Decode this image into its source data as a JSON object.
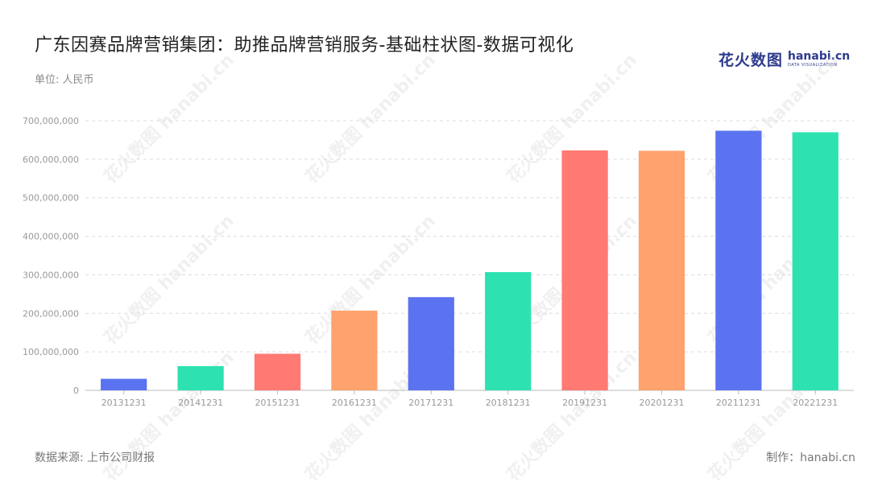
{
  "header": {
    "title": "广东因赛品牌营销集团：助推品牌营销服务-基础柱状图-数据可视化",
    "unit": "单位: 人民币"
  },
  "logo": {
    "cn": "花火数图",
    "en": "hanabi.cn",
    "sub": "DATA VISUALIZATION"
  },
  "footer": {
    "source": "数据来源: 上市公司财报",
    "credit": "制作：hanabi.cn"
  },
  "watermark": {
    "text": "花火数图 hanabi.cn"
  },
  "chart_data": {
    "type": "bar",
    "title": "广东因赛品牌营销集团：助推品牌营销服务-基础柱状图-数据可视化",
    "xlabel": "",
    "ylabel": "",
    "categories": [
      "20131231",
      "20141231",
      "20151231",
      "20161231",
      "20171231",
      "20181231",
      "20191231",
      "20201231",
      "20211231",
      "20221231"
    ],
    "values": [
      30000000,
      63000000,
      95000000,
      207000000,
      242000000,
      307000000,
      623000000,
      622000000,
      674000000,
      670000000
    ],
    "colors": [
      "#5b73f0",
      "#2de2b0",
      "#ff7a72",
      "#ffa26e",
      "#5b73f0",
      "#2de2b0",
      "#ff7a72",
      "#ffa26e",
      "#5b73f0",
      "#2de2b0"
    ],
    "ylim": [
      0,
      700000000
    ],
    "yticks": [
      0,
      100000000,
      200000000,
      300000000,
      400000000,
      500000000,
      600000000,
      700000000
    ],
    "ytick_labels": [
      "0",
      "100,000,000",
      "200,000,000",
      "300,000,000",
      "400,000,000",
      "500,000,000",
      "600,000,000",
      "700,000,000"
    ],
    "grid": true,
    "legend": "none"
  }
}
